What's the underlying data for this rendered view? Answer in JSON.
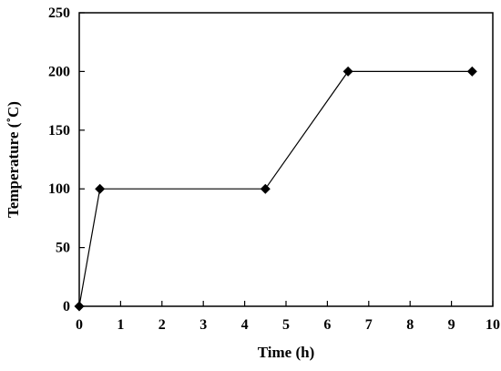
{
  "chart_data": {
    "type": "line",
    "title": "",
    "xlabel": "Time (h)",
    "ylabel": "Temperature (˚C)",
    "xlim": [
      0,
      10
    ],
    "ylim": [
      0,
      250
    ],
    "x_ticks": [
      "0",
      "1",
      "2",
      "3",
      "4",
      "5",
      "6",
      "7",
      "8",
      "9",
      "10"
    ],
    "y_ticks": [
      "0",
      "50",
      "100",
      "150",
      "200",
      "250"
    ],
    "grid": false,
    "legend": "none",
    "marker": "diamond",
    "colors": {
      "line": "#000000",
      "marker": "#000000",
      "frame": "#000000"
    },
    "series": [
      {
        "x": [
          0,
          0.5,
          4.5,
          6.5,
          9.5
        ],
        "y": [
          0,
          100,
          100,
          200,
          200
        ]
      }
    ]
  }
}
